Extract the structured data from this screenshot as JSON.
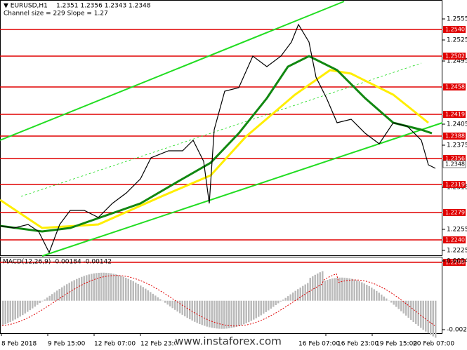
{
  "header": {
    "symbol": "▼ EURUSD,H1",
    "ohlc": "1.2351 1.2356 1.2343 1.2348",
    "channel": "Channel size = 229 Slope = 1.27"
  },
  "price_axis": {
    "ylim": [
      1.2195,
      1.2555
    ],
    "ticks": [
      {
        "value": 1.2555,
        "label": "1.2555"
      },
      {
        "value": 1.2525,
        "label": "1.2525"
      },
      {
        "value": 1.2495,
        "label": "1.2495"
      },
      {
        "value": 1.2405,
        "label": "1.2405"
      },
      {
        "value": 1.2375,
        "label": "1.2375"
      },
      {
        "value": 1.2315,
        "label": "1.2315"
      },
      {
        "value": 1.2255,
        "label": "1.2255"
      },
      {
        "value": 1.2225,
        "label": "1.2225"
      },
      {
        "value": 1.2195,
        "label": "1.2195"
      }
    ],
    "current": {
      "value": 1.2348,
      "label": "1.2348"
    }
  },
  "levels": [
    {
      "value": 1.254,
      "label": "1.2540"
    },
    {
      "value": 1.2502,
      "label": "1.2502"
    },
    {
      "value": 1.2458,
      "label": "1.2458"
    },
    {
      "value": 1.2419,
      "label": "1.2419"
    },
    {
      "value": 1.2388,
      "label": "1.2388"
    },
    {
      "value": 1.2356,
      "label": "1.2356"
    },
    {
      "value": 1.2319,
      "label": "1.2319"
    },
    {
      "value": 1.2279,
      "label": "1.2279"
    },
    {
      "value": 1.224,
      "label": "1.2240"
    },
    {
      "value": 1.2208,
      "label": "1.2208"
    }
  ],
  "macd": {
    "label": "MACD(12,26,9) -0.00184 -0.00142",
    "ylim": [
      -0.00253,
      0.00348
    ],
    "ticks": [
      {
        "value": 0.00348,
        "label": "0.00348"
      },
      {
        "value": -0.00253,
        "label": "-0.00253"
      }
    ]
  },
  "dates": [
    "8 Feb 2018",
    "9 Feb 15:00",
    "12 Feb 07:00",
    "12 Feb 23:00",
    "13 Feb 15:00",
    "16 Feb 07:00",
    "16 Feb 23:00",
    "19 Feb 15:00",
    "20 Feb 07:00"
  ],
  "watermark": "www.instaforex.com"
}
